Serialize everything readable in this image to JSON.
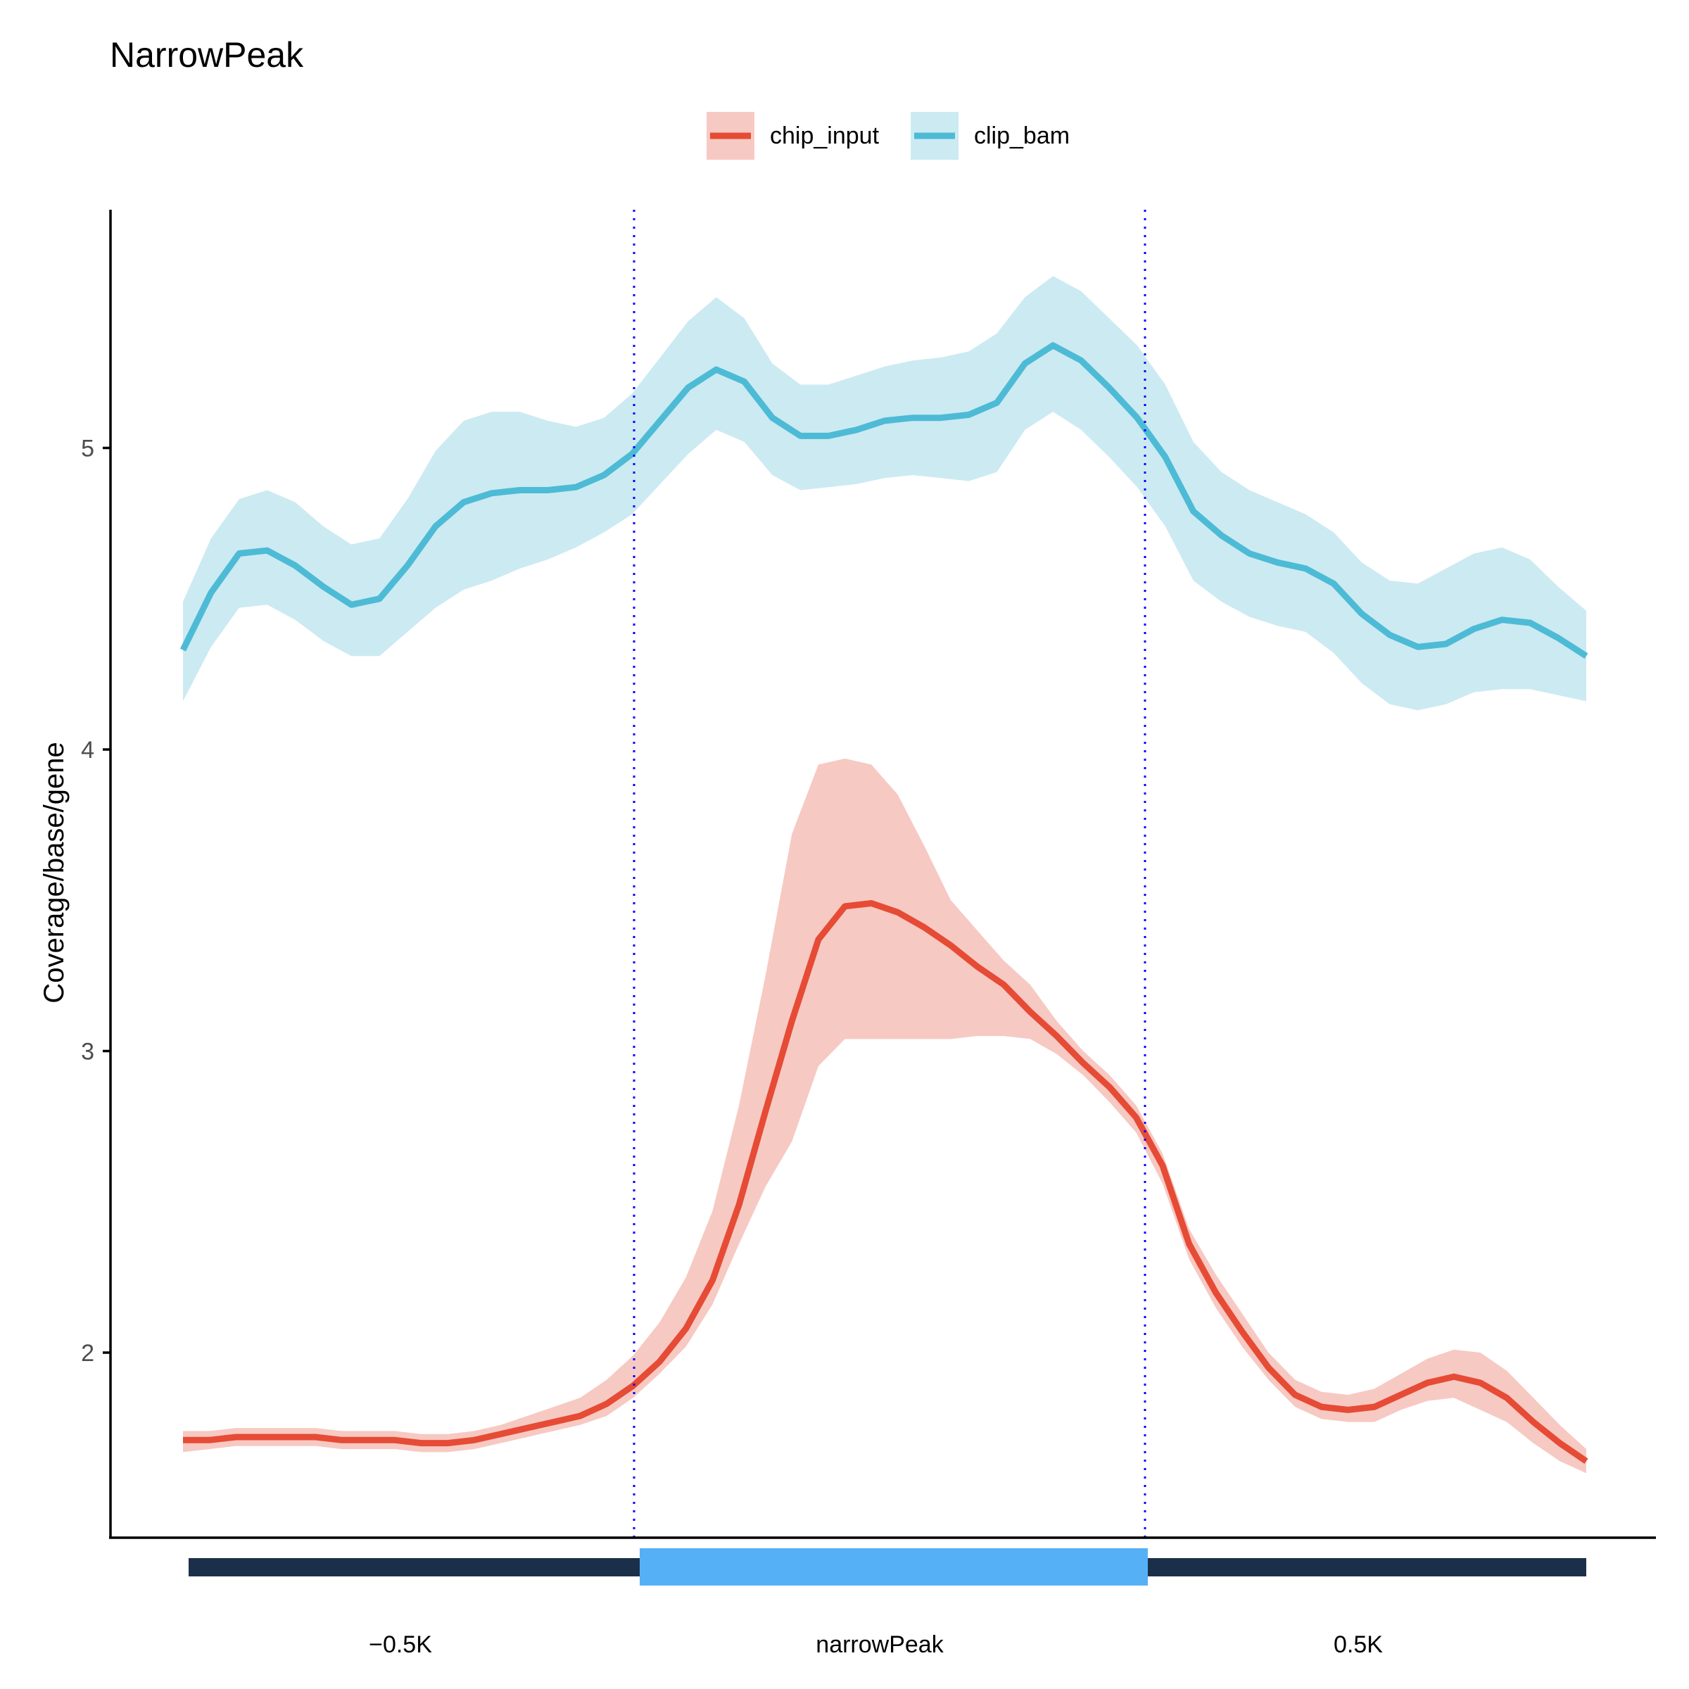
{
  "chart_data": {
    "type": "line",
    "title": "NarrowPeak",
    "xlabel": "",
    "ylabel": "Coverage/base/gene",
    "ylim": [
      1.4,
      5.8
    ],
    "yticks": [
      2,
      3,
      4,
      5
    ],
    "x_ticks": [
      {
        "label": "−0.5K"
      },
      {
        "label": "narrowPeak"
      },
      {
        "label": "0.5K"
      }
    ],
    "legend_position": "top",
    "grid": false,
    "series": [
      {
        "name": "chip_input",
        "color": "#E64B35",
        "band_color": "#F7C9C3",
        "values": [
          1.71,
          1.71,
          1.72,
          1.72,
          1.72,
          1.72,
          1.71,
          1.71,
          1.71,
          1.7,
          1.7,
          1.71,
          1.73,
          1.75,
          1.77,
          1.79,
          1.83,
          1.89,
          1.97,
          2.08,
          2.24,
          2.49,
          2.8,
          3.1,
          3.37,
          3.48,
          3.49,
          3.46,
          3.41,
          3.35,
          3.28,
          3.22,
          3.13,
          3.05,
          2.96,
          2.88,
          2.78,
          2.62,
          2.36,
          2.2,
          2.07,
          1.95,
          1.86,
          1.82,
          1.81,
          1.82,
          1.86,
          1.9,
          1.92,
          1.9,
          1.85,
          1.77,
          1.7,
          1.64
        ],
        "upper": [
          1.74,
          1.74,
          1.75,
          1.75,
          1.75,
          1.75,
          1.74,
          1.74,
          1.74,
          1.73,
          1.73,
          1.74,
          1.76,
          1.79,
          1.82,
          1.85,
          1.91,
          1.99,
          2.1,
          2.25,
          2.47,
          2.82,
          3.25,
          3.72,
          3.95,
          3.97,
          3.95,
          3.85,
          3.68,
          3.5,
          3.4,
          3.3,
          3.22,
          3.1,
          3.0,
          2.92,
          2.82,
          2.66,
          2.41,
          2.26,
          2.13,
          2.0,
          1.91,
          1.87,
          1.86,
          1.88,
          1.93,
          1.98,
          2.01,
          2.0,
          1.94,
          1.85,
          1.76,
          1.68
        ],
        "lower": [
          1.67,
          1.68,
          1.69,
          1.69,
          1.69,
          1.69,
          1.68,
          1.68,
          1.68,
          1.67,
          1.67,
          1.68,
          1.7,
          1.72,
          1.74,
          1.76,
          1.79,
          1.85,
          1.93,
          2.02,
          2.16,
          2.36,
          2.55,
          2.7,
          2.95,
          3.04,
          3.04,
          3.04,
          3.04,
          3.04,
          3.05,
          3.05,
          3.04,
          2.99,
          2.92,
          2.83,
          2.73,
          2.56,
          2.31,
          2.15,
          2.02,
          1.91,
          1.82,
          1.78,
          1.77,
          1.77,
          1.81,
          1.84,
          1.85,
          1.81,
          1.77,
          1.7,
          1.64,
          1.6
        ]
      },
      {
        "name": "clip_bam",
        "color": "#4DBBD5",
        "band_color": "#CCEAF2",
        "values": [
          4.33,
          4.52,
          4.65,
          4.66,
          4.61,
          4.54,
          4.48,
          4.5,
          4.61,
          4.74,
          4.82,
          4.85,
          4.86,
          4.86,
          4.87,
          4.91,
          4.98,
          5.09,
          5.2,
          5.26,
          5.22,
          5.1,
          5.04,
          5.04,
          5.06,
          5.09,
          5.1,
          5.1,
          5.11,
          5.15,
          5.28,
          5.34,
          5.29,
          5.2,
          5.1,
          4.97,
          4.79,
          4.71,
          4.65,
          4.62,
          4.6,
          4.55,
          4.45,
          4.38,
          4.34,
          4.35,
          4.4,
          4.43,
          4.42,
          4.37,
          4.31
        ],
        "upper": [
          4.49,
          4.7,
          4.83,
          4.86,
          4.82,
          4.74,
          4.68,
          4.7,
          4.83,
          4.99,
          5.09,
          5.12,
          5.12,
          5.09,
          5.07,
          5.1,
          5.18,
          5.3,
          5.42,
          5.5,
          5.43,
          5.28,
          5.21,
          5.21,
          5.24,
          5.27,
          5.29,
          5.3,
          5.32,
          5.38,
          5.5,
          5.57,
          5.52,
          5.43,
          5.34,
          5.21,
          5.02,
          4.92,
          4.86,
          4.82,
          4.78,
          4.72,
          4.62,
          4.56,
          4.55,
          4.6,
          4.65,
          4.67,
          4.63,
          4.54,
          4.46
        ],
        "lower": [
          4.16,
          4.34,
          4.47,
          4.48,
          4.43,
          4.36,
          4.31,
          4.31,
          4.39,
          4.47,
          4.53,
          4.56,
          4.6,
          4.63,
          4.67,
          4.72,
          4.78,
          4.88,
          4.98,
          5.06,
          5.02,
          4.91,
          4.86,
          4.87,
          4.88,
          4.9,
          4.91,
          4.9,
          4.89,
          4.92,
          5.06,
          5.12,
          5.06,
          4.97,
          4.87,
          4.74,
          4.56,
          4.49,
          4.44,
          4.41,
          4.39,
          4.32,
          4.22,
          4.15,
          4.13,
          4.15,
          4.19,
          4.2,
          4.2,
          4.18,
          4.16
        ]
      }
    ],
    "annotations": {
      "vlines_color": "#0000FF",
      "gene_track": {
        "flank_color": "#1B2F4A",
        "peak_color": "#56B0F5",
        "label": "narrowPeak"
      }
    }
  }
}
